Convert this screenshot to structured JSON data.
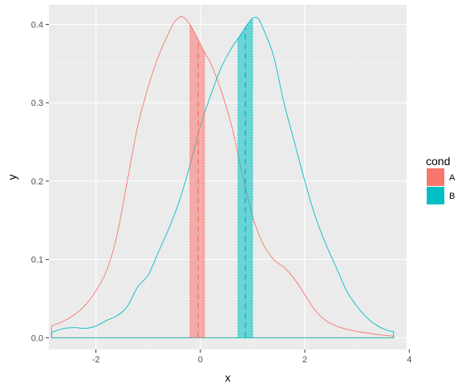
{
  "chart_data": {
    "type": "area",
    "xlabel": "x",
    "ylabel": "y",
    "xlim": [
      -2.9,
      3.95
    ],
    "ylim": [
      -0.015,
      0.425
    ],
    "x_ticks": [
      -2,
      0,
      2,
      4
    ],
    "x_tick_labels": [
      "-2",
      "0",
      "2",
      "4"
    ],
    "y_ticks": [
      0.0,
      0.1,
      0.2,
      0.3,
      0.4
    ],
    "y_tick_labels": [
      "0.0",
      "0.1",
      "0.2",
      "0.3",
      "0.4"
    ],
    "grid": true,
    "legend": {
      "title": "cond",
      "position": "right"
    },
    "series": [
      {
        "name": "A",
        "color": "#F8766D",
        "x": [
          -2.85,
          -2.6,
          -2.4,
          -2.2,
          -2.0,
          -1.8,
          -1.6,
          -1.4,
          -1.2,
          -1.0,
          -0.8,
          -0.6,
          -0.5,
          -0.4,
          -0.35,
          -0.3,
          -0.2,
          -0.1,
          0.0,
          0.1,
          0.2,
          0.4,
          0.6,
          0.8,
          1.0,
          1.2,
          1.4,
          1.6,
          1.8,
          2.0,
          2.2,
          2.4,
          2.6,
          2.8,
          3.0,
          3.2,
          3.4,
          3.7
        ],
        "y": [
          0.015,
          0.022,
          0.03,
          0.042,
          0.06,
          0.085,
          0.13,
          0.2,
          0.27,
          0.32,
          0.36,
          0.39,
          0.403,
          0.409,
          0.41,
          0.408,
          0.4,
          0.388,
          0.375,
          0.362,
          0.35,
          0.315,
          0.27,
          0.21,
          0.155,
          0.12,
          0.1,
          0.09,
          0.075,
          0.055,
          0.035,
          0.022,
          0.015,
          0.011,
          0.008,
          0.006,
          0.004,
          0.002
        ],
        "ci_band": [
          -0.2,
          0.08
        ],
        "mean": -0.04
      },
      {
        "name": "B",
        "color": "#00BFC4",
        "x": [
          -2.85,
          -2.6,
          -2.4,
          -2.2,
          -2.0,
          -1.8,
          -1.6,
          -1.4,
          -1.2,
          -1.0,
          -0.8,
          -0.6,
          -0.4,
          -0.2,
          0.0,
          0.2,
          0.4,
          0.6,
          0.7,
          0.8,
          0.9,
          1.0,
          1.1,
          1.2,
          1.4,
          1.6,
          1.8,
          2.0,
          2.2,
          2.4,
          2.6,
          2.8,
          3.0,
          3.2,
          3.4,
          3.6,
          3.7
        ],
        "y": [
          0.007,
          0.012,
          0.013,
          0.012,
          0.015,
          0.022,
          0.028,
          0.04,
          0.065,
          0.08,
          0.11,
          0.14,
          0.175,
          0.22,
          0.27,
          0.31,
          0.345,
          0.37,
          0.38,
          0.39,
          0.4,
          0.408,
          0.408,
          0.395,
          0.36,
          0.3,
          0.25,
          0.2,
          0.155,
          0.12,
          0.09,
          0.06,
          0.04,
          0.025,
          0.015,
          0.009,
          0.008
        ],
        "ci_band": [
          0.72,
          1.0
        ],
        "mean": 0.86
      }
    ]
  }
}
